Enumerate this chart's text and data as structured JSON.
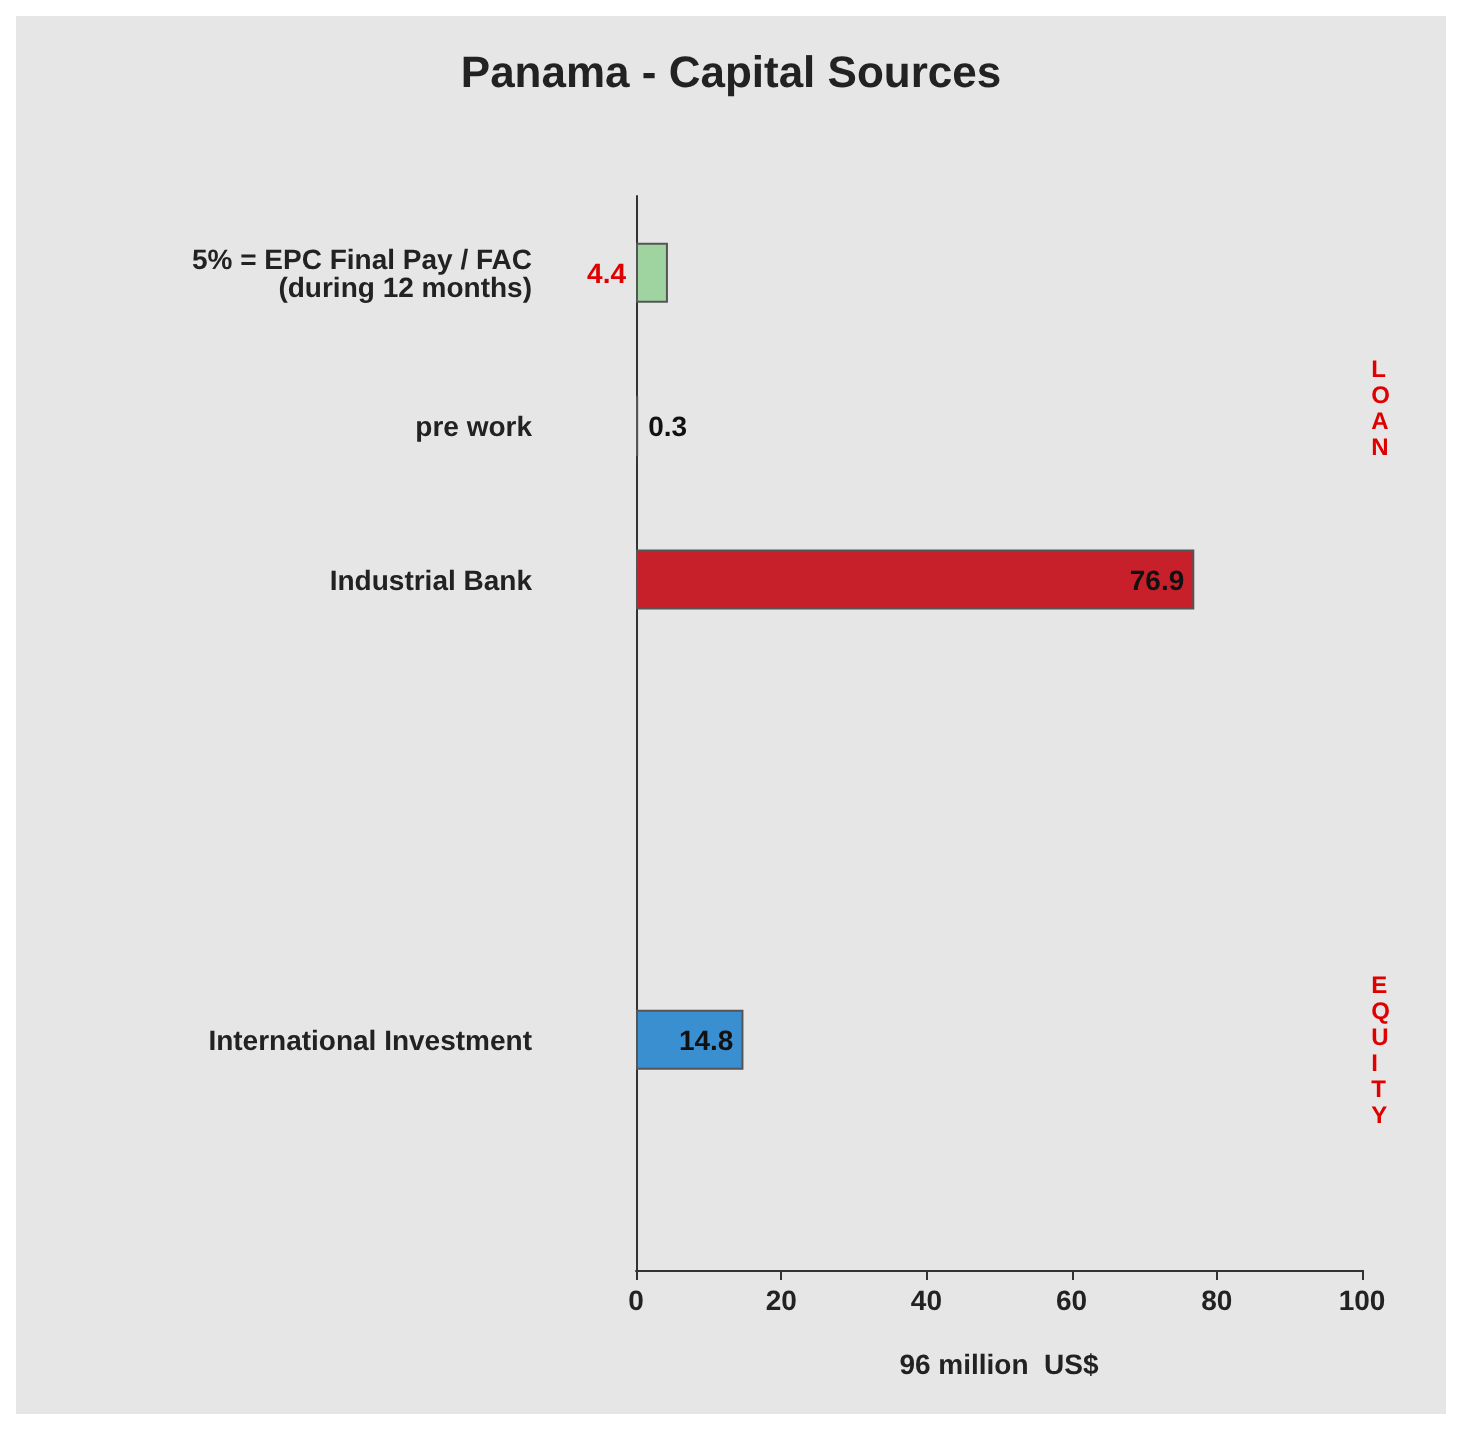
{
  "chart_data": {
    "type": "bar",
    "orientation": "horizontal",
    "title": "Panama - Capital Sources",
    "xlabel": "96 million  US$",
    "categories": [
      "5% = EPC Final Pay / FAC\n(during 12 months)",
      "pre work",
      "Industrial Bank",
      null,
      null,
      "International Investment",
      null
    ],
    "values": [
      4.4,
      0.3,
      76.9,
      null,
      null,
      14.8,
      null
    ],
    "colors": [
      "#9fd39f",
      "#222222",
      "#c8202a",
      "#ffffff",
      "#ffffff",
      "#3a8fd0",
      "#ffffff"
    ],
    "data_labels": true,
    "xlim": [
      0,
      100
    ],
    "xticks": [
      0,
      20,
      40,
      60,
      80,
      100
    ],
    "grid": false,
    "annotations": [
      "LOAN",
      "EQUITY"
    ]
  }
}
